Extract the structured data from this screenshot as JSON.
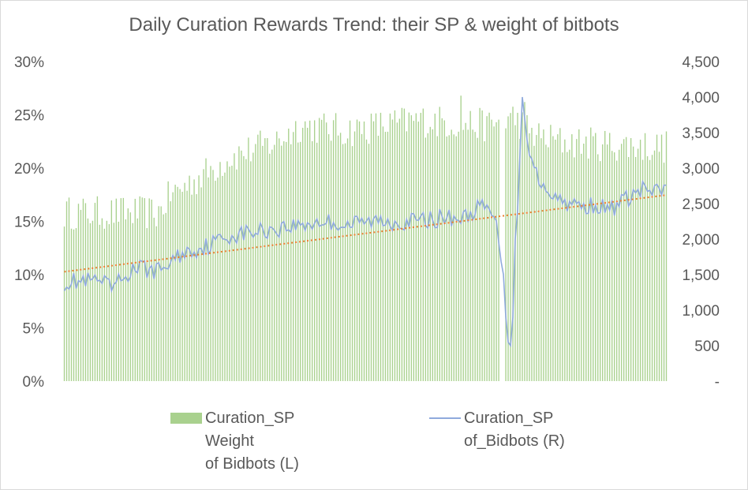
{
  "chart_data": {
    "type": "bar+line",
    "title": "Daily Curation Rewards Trend: their SP & weight of bitbots",
    "left_axis": {
      "ticks": [
        "0%",
        "5%",
        "10%",
        "15%",
        "20%",
        "25%",
        "30%"
      ],
      "ylim": [
        0,
        30
      ]
    },
    "right_axis": {
      "ticks": [
        "-",
        "500",
        "1,000",
        "1,500",
        "2,000",
        "2,500",
        "3,000",
        "3,500",
        "4,000",
        "4,500"
      ],
      "ylim": [
        0,
        4500
      ]
    },
    "x_count": 256,
    "series": [
      {
        "name": "Curation_SP Weight of Bidbots (L)",
        "kind": "bar",
        "axis": "left",
        "color": "#a9d18e",
        "anchors": [
          [
            0,
            15.8
          ],
          [
            40,
            15.8
          ],
          [
            45,
            17.5
          ],
          [
            60,
            19.5
          ],
          [
            70,
            21.0
          ],
          [
            90,
            22.5
          ],
          [
            100,
            24.0
          ],
          [
            120,
            23.5
          ],
          [
            150,
            24.5
          ],
          [
            180,
            24.0
          ],
          [
            190,
            24.8
          ],
          [
            200,
            23.0
          ],
          [
            210,
            22.5
          ],
          [
            230,
            22.2
          ],
          [
            255,
            22.0
          ]
        ],
        "gaps": [
          185,
          186
        ]
      },
      {
        "name": "Curation_SP of_Bidbots (R)",
        "kind": "line",
        "axis": "right",
        "color": "#8faadc",
        "anchors": [
          [
            0,
            1400
          ],
          [
            15,
            1400
          ],
          [
            20,
            1300
          ],
          [
            30,
            1600
          ],
          [
            40,
            1550
          ],
          [
            50,
            1800
          ],
          [
            60,
            1900
          ],
          [
            70,
            2050
          ],
          [
            80,
            2100
          ],
          [
            90,
            2150
          ],
          [
            100,
            2200
          ],
          [
            110,
            2250
          ],
          [
            120,
            2200
          ],
          [
            130,
            2250
          ],
          [
            140,
            2250
          ],
          [
            150,
            2250
          ],
          [
            160,
            2300
          ],
          [
            170,
            2300
          ],
          [
            175,
            2450
          ],
          [
            180,
            2400
          ],
          [
            182,
            2300
          ],
          [
            184,
            2000
          ],
          [
            186,
            1500
          ],
          [
            187,
            900
          ],
          [
            188,
            550
          ],
          [
            189,
            500
          ],
          [
            190,
            900
          ],
          [
            191,
            2000
          ],
          [
            192,
            2400
          ],
          [
            193,
            3200
          ],
          [
            194,
            4000
          ],
          [
            195,
            3700
          ],
          [
            196,
            3400
          ],
          [
            197,
            3300
          ],
          [
            198,
            3200
          ],
          [
            200,
            2900
          ],
          [
            205,
            2700
          ],
          [
            210,
            2550
          ],
          [
            215,
            2500
          ],
          [
            220,
            2450
          ],
          [
            225,
            2500
          ],
          [
            230,
            2400
          ],
          [
            235,
            2500
          ],
          [
            240,
            2600
          ],
          [
            245,
            2700
          ],
          [
            250,
            2650
          ],
          [
            255,
            2700
          ]
        ]
      },
      {
        "name": "trend",
        "kind": "trendline",
        "axis": "right",
        "color": "#ed7d31",
        "from": 1540,
        "to": 2620
      }
    ],
    "legend": "bottom"
  },
  "legend": {
    "bars_label": "Curation_SP\nWeight\nof Bidbots (L)",
    "line_label": "Curation_SP\nof_Bidbots (R)"
  }
}
